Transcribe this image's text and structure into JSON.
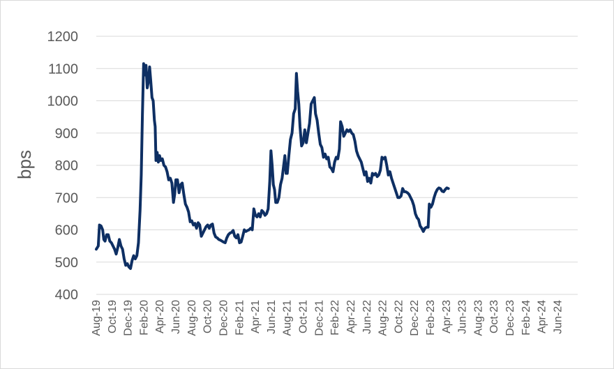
{
  "chart_data": {
    "type": "line",
    "title": "",
    "xlabel": "",
    "ylabel": "bps",
    "ylim": [
      400,
      1200
    ],
    "yticks": [
      400,
      500,
      600,
      700,
      800,
      900,
      1000,
      1100,
      1200
    ],
    "x_tick_labels": [
      "Aug-19",
      "Oct-19",
      "Dec-19",
      "Feb-20",
      "Apr-20",
      "Jun-20",
      "Aug-20",
      "Oct-20",
      "Dec-20",
      "Feb-21",
      "Apr-21",
      "Jun-21",
      "Aug-21",
      "Oct-21",
      "Dec-21",
      "Feb-22",
      "Apr-22",
      "Jun-22",
      "Aug-22",
      "Oct-22",
      "Dec-22",
      "Feb-23",
      "Apr-23",
      "Jun-23",
      "Aug-23",
      "Oct-23",
      "Dec-23",
      "Feb-24",
      "Apr-24",
      "Jun-24"
    ],
    "x_range": [
      0,
      60.5
    ],
    "grid": "horizontal",
    "legend": "none",
    "series": [
      {
        "color": "#0e2f63",
        "points": [
          [
            0.0,
            540
          ],
          [
            0.25,
            550
          ],
          [
            0.4,
            615
          ],
          [
            0.6,
            612
          ],
          [
            0.8,
            600
          ],
          [
            0.95,
            570
          ],
          [
            1.1,
            565
          ],
          [
            1.3,
            585
          ],
          [
            1.5,
            585
          ],
          [
            1.7,
            565
          ],
          [
            1.9,
            560
          ],
          [
            2.1,
            550
          ],
          [
            2.3,
            540
          ],
          [
            2.5,
            525
          ],
          [
            2.7,
            545
          ],
          [
            2.9,
            570
          ],
          [
            3.1,
            550
          ],
          [
            3.3,
            540
          ],
          [
            3.5,
            510
          ],
          [
            3.7,
            490
          ],
          [
            3.9,
            495
          ],
          [
            4.1,
            485
          ],
          [
            4.3,
            480
          ],
          [
            4.5,
            505
          ],
          [
            4.7,
            520
          ],
          [
            4.9,
            510
          ],
          [
            5.1,
            520
          ],
          [
            5.3,
            560
          ],
          [
            5.5,
            660
          ],
          [
            5.65,
            770
          ],
          [
            5.8,
            960
          ],
          [
            5.95,
            1115
          ],
          [
            6.1,
            1080
          ],
          [
            6.25,
            1110
          ],
          [
            6.4,
            1040
          ],
          [
            6.55,
            1060
          ],
          [
            6.7,
            1105
          ],
          [
            6.85,
            1060
          ],
          [
            7.0,
            1010
          ],
          [
            7.15,
            1000
          ],
          [
            7.3,
            940
          ],
          [
            7.4,
            920
          ],
          [
            7.5,
            815
          ],
          [
            7.65,
            840
          ],
          [
            7.8,
            810
          ],
          [
            7.95,
            830
          ],
          [
            8.1,
            815
          ],
          [
            8.3,
            820
          ],
          [
            8.5,
            800
          ],
          [
            8.7,
            795
          ],
          [
            8.9,
            780
          ],
          [
            9.1,
            755
          ],
          [
            9.3,
            760
          ],
          [
            9.5,
            745
          ],
          [
            9.7,
            685
          ],
          [
            9.85,
            710
          ],
          [
            10.0,
            755
          ],
          [
            10.2,
            755
          ],
          [
            10.4,
            715
          ],
          [
            10.6,
            740
          ],
          [
            10.8,
            745
          ],
          [
            11.0,
            710
          ],
          [
            11.2,
            680
          ],
          [
            11.4,
            670
          ],
          [
            11.6,
            655
          ],
          [
            11.8,
            625
          ],
          [
            12.0,
            628
          ],
          [
            12.2,
            615
          ],
          [
            12.4,
            620
          ],
          [
            12.6,
            605
          ],
          [
            12.8,
            622
          ],
          [
            13.0,
            615
          ],
          [
            13.2,
            580
          ],
          [
            13.4,
            590
          ],
          [
            13.6,
            600
          ],
          [
            13.8,
            610
          ],
          [
            14.0,
            615
          ],
          [
            14.2,
            605
          ],
          [
            14.4,
            615
          ],
          [
            14.6,
            618
          ],
          [
            14.8,
            590
          ],
          [
            15.0,
            578
          ],
          [
            15.2,
            575
          ],
          [
            15.4,
            570
          ],
          [
            15.6,
            568
          ],
          [
            15.8,
            565
          ],
          [
            16.0,
            562
          ],
          [
            16.2,
            560
          ],
          [
            16.4,
            575
          ],
          [
            16.6,
            585
          ],
          [
            16.8,
            590
          ],
          [
            17.0,
            592
          ],
          [
            17.2,
            598
          ],
          [
            17.4,
            580
          ],
          [
            17.6,
            575
          ],
          [
            17.8,
            585
          ],
          [
            18.0,
            560
          ],
          [
            18.2,
            562
          ],
          [
            18.4,
            580
          ],
          [
            18.6,
            600
          ],
          [
            18.8,
            595
          ],
          [
            19.0,
            598
          ],
          [
            19.2,
            600
          ],
          [
            19.4,
            605
          ],
          [
            19.6,
            600
          ],
          [
            19.8,
            665
          ],
          [
            20.0,
            645
          ],
          [
            20.2,
            640
          ],
          [
            20.4,
            650
          ],
          [
            20.6,
            640
          ],
          [
            20.8,
            660
          ],
          [
            21.0,
            655
          ],
          [
            21.2,
            645
          ],
          [
            21.4,
            650
          ],
          [
            21.6,
            665
          ],
          [
            21.8,
            750
          ],
          [
            21.95,
            845
          ],
          [
            22.1,
            800
          ],
          [
            22.25,
            740
          ],
          [
            22.4,
            725
          ],
          [
            22.55,
            685
          ],
          [
            22.75,
            685
          ],
          [
            22.95,
            700
          ],
          [
            23.15,
            740
          ],
          [
            23.35,
            760
          ],
          [
            23.55,
            800
          ],
          [
            23.7,
            830
          ],
          [
            23.85,
            775
          ],
          [
            24.0,
            775
          ],
          [
            24.2,
            830
          ],
          [
            24.4,
            880
          ],
          [
            24.6,
            900
          ],
          [
            24.8,
            960
          ],
          [
            25.0,
            975
          ],
          [
            25.15,
            1085
          ],
          [
            25.3,
            1030
          ],
          [
            25.45,
            990
          ],
          [
            25.6,
            920
          ],
          [
            25.8,
            860
          ],
          [
            26.0,
            870
          ],
          [
            26.2,
            910
          ],
          [
            26.4,
            870
          ],
          [
            26.6,
            900
          ],
          [
            26.8,
            930
          ],
          [
            27.0,
            990
          ],
          [
            27.2,
            1000
          ],
          [
            27.4,
            1010
          ],
          [
            27.55,
            960
          ],
          [
            27.75,
            940
          ],
          [
            27.95,
            900
          ],
          [
            28.15,
            865
          ],
          [
            28.35,
            855
          ],
          [
            28.55,
            825
          ],
          [
            28.75,
            835
          ],
          [
            28.95,
            820
          ],
          [
            29.15,
            825
          ],
          [
            29.35,
            795
          ],
          [
            29.55,
            790
          ],
          [
            29.75,
            780
          ],
          [
            29.95,
            810
          ],
          [
            30.15,
            825
          ],
          [
            30.35,
            820
          ],
          [
            30.55,
            850
          ],
          [
            30.7,
            935
          ],
          [
            30.9,
            920
          ],
          [
            31.1,
            890
          ],
          [
            31.3,
            900
          ],
          [
            31.5,
            910
          ],
          [
            31.7,
            905
          ],
          [
            31.9,
            910
          ],
          [
            32.1,
            900
          ],
          [
            32.3,
            895
          ],
          [
            32.5,
            875
          ],
          [
            32.7,
            845
          ],
          [
            32.9,
            830
          ],
          [
            33.1,
            820
          ],
          [
            33.3,
            810
          ],
          [
            33.5,
            790
          ],
          [
            33.7,
            770
          ],
          [
            33.9,
            780
          ],
          [
            34.1,
            750
          ],
          [
            34.3,
            760
          ],
          [
            34.5,
            745
          ],
          [
            34.7,
            775
          ],
          [
            34.9,
            770
          ],
          [
            35.1,
            775
          ],
          [
            35.3,
            765
          ],
          [
            35.5,
            770
          ],
          [
            35.7,
            785
          ],
          [
            35.9,
            825
          ],
          [
            36.1,
            820
          ],
          [
            36.3,
            825
          ],
          [
            36.5,
            800
          ],
          [
            36.7,
            770
          ],
          [
            36.9,
            780
          ],
          [
            37.1,
            760
          ],
          [
            37.3,
            745
          ],
          [
            37.5,
            730
          ],
          [
            37.7,
            715
          ],
          [
            37.9,
            700
          ],
          [
            38.1,
            700
          ],
          [
            38.3,
            705
          ],
          [
            38.5,
            728
          ],
          [
            38.7,
            718
          ],
          [
            38.9,
            718
          ],
          [
            39.1,
            715
          ],
          [
            39.3,
            710
          ],
          [
            39.5,
            700
          ],
          [
            39.7,
            690
          ],
          [
            39.9,
            675
          ],
          [
            40.1,
            650
          ],
          [
            40.3,
            638
          ],
          [
            40.5,
            632
          ],
          [
            40.7,
            612
          ],
          [
            40.9,
            605
          ],
          [
            41.1,
            595
          ],
          [
            41.3,
            605
          ],
          [
            41.5,
            608
          ],
          [
            41.7,
            608
          ],
          [
            41.85,
            680
          ],
          [
            42.05,
            670
          ],
          [
            42.25,
            680
          ],
          [
            42.45,
            700
          ],
          [
            42.65,
            715
          ],
          [
            42.85,
            725
          ],
          [
            43.05,
            730
          ],
          [
            43.25,
            728
          ],
          [
            43.45,
            720
          ],
          [
            43.65,
            718
          ],
          [
            43.85,
            725
          ],
          [
            44.05,
            730
          ],
          [
            44.25,
            728
          ]
        ]
      }
    ]
  }
}
